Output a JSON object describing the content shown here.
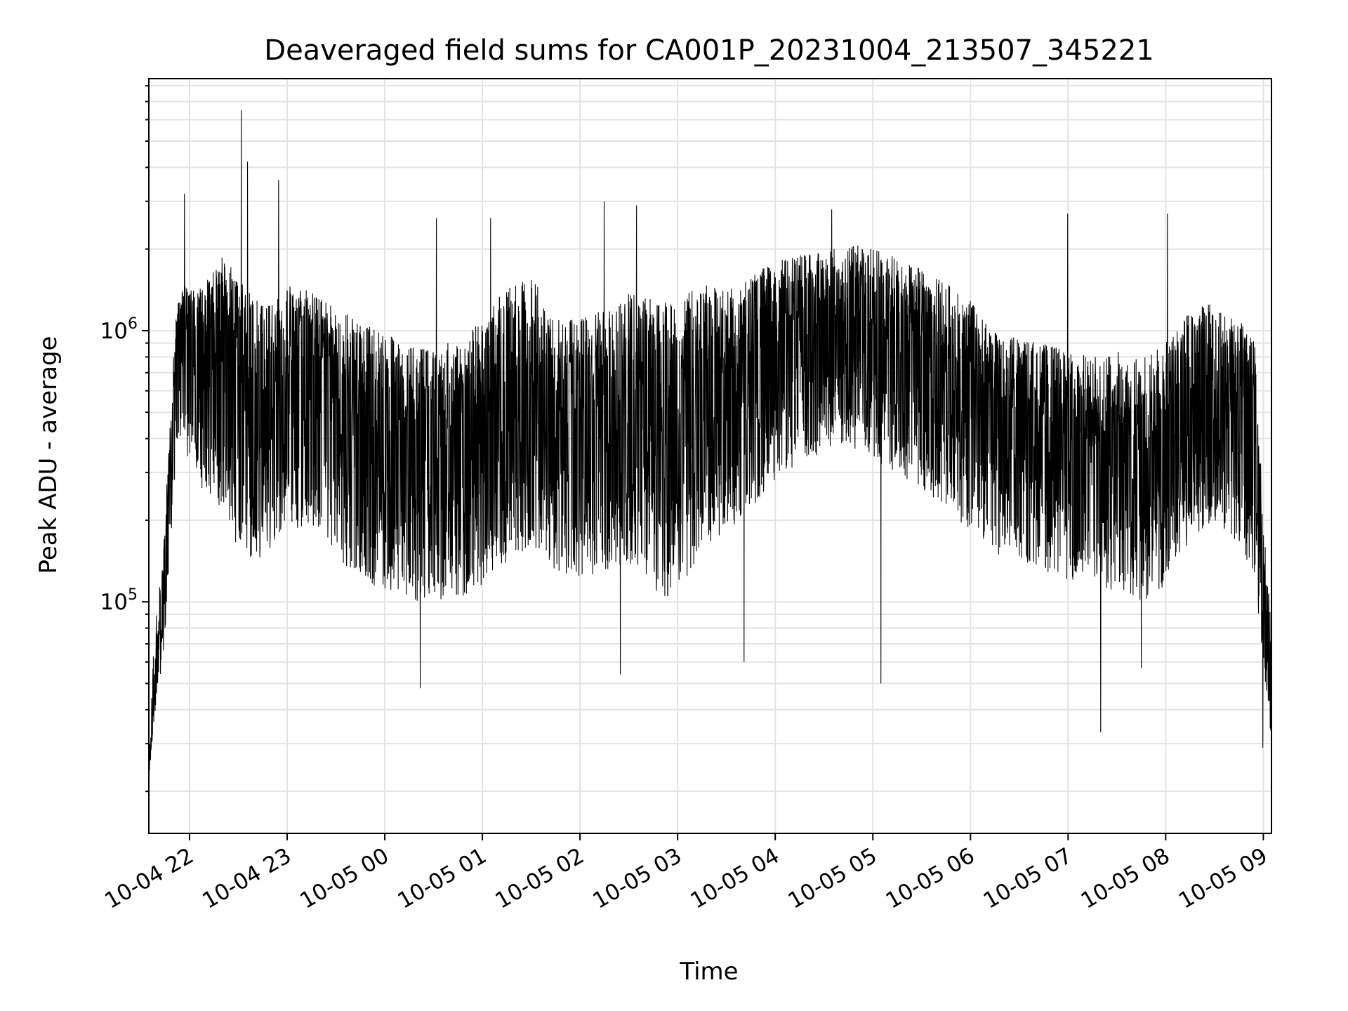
{
  "chart_data": {
    "type": "line",
    "title": "Deaveraged field sums for CA001P_20231004_213507_345221",
    "xlabel": "Time",
    "ylabel": "Peak ADU - average",
    "xscale": "time",
    "yscale": "log",
    "grid": true,
    "legend": "none",
    "line_color": "#000000",
    "grid_color": "#e3e3e3",
    "xlim": [
      "2023-10-04 21:35",
      "2023-10-05 09:05"
    ],
    "ylim": [
      14000,
      8500000
    ],
    "xticks": [
      "10-04 22",
      "10-04 23",
      "10-05 00",
      "10-05 01",
      "10-05 02",
      "10-05 03",
      "10-05 04",
      "10-05 05",
      "10-05 06",
      "10-05 07",
      "10-05 08",
      "10-05 09"
    ],
    "yticks": [
      {
        "base": "10",
        "exp": "5",
        "value": 100000
      },
      {
        "base": "10",
        "exp": "6",
        "value": 1000000
      }
    ],
    "series": [
      {
        "x": [
          "2023-10-04 21:35",
          "2023-10-04 21:38",
          "2023-10-04 21:41",
          "2023-10-04 21:44",
          "2023-10-04 21:48",
          "2023-10-04 21:52",
          "2023-10-04 21:56",
          "2023-10-04 22:00",
          "2023-10-04 22:10",
          "2023-10-04 22:20",
          "2023-10-04 22:30",
          "2023-10-04 22:40",
          "2023-10-04 22:50",
          "2023-10-04 23:00",
          "2023-10-04 23:15",
          "2023-10-04 23:30",
          "2023-10-04 23:45",
          "2023-10-05 00:00",
          "2023-10-05 00:15",
          "2023-10-05 00:30",
          "2023-10-05 00:45",
          "2023-10-05 01:00",
          "2023-10-05 01:15",
          "2023-10-05 01:30",
          "2023-10-05 01:45",
          "2023-10-05 02:00",
          "2023-10-05 02:15",
          "2023-10-05 02:30",
          "2023-10-05 02:45",
          "2023-10-05 03:00",
          "2023-10-05 03:15",
          "2023-10-05 03:30",
          "2023-10-05 03:45",
          "2023-10-05 04:00",
          "2023-10-05 04:15",
          "2023-10-05 04:30",
          "2023-10-05 04:45",
          "2023-10-05 05:00",
          "2023-10-05 05:15",
          "2023-10-05 05:30",
          "2023-10-05 05:45",
          "2023-10-05 06:00",
          "2023-10-05 06:15",
          "2023-10-05 06:30",
          "2023-10-05 06:45",
          "2023-10-05 07:00",
          "2023-10-05 07:15",
          "2023-10-05 07:30",
          "2023-10-05 07:45",
          "2023-10-05 08:00",
          "2023-10-05 08:15",
          "2023-10-05 08:30",
          "2023-10-05 08:45",
          "2023-10-05 08:55",
          "2023-10-05 09:00",
          "2023-10-05 09:05"
        ],
        "y": [
          22000,
          45000,
          80000,
          120000,
          300000,
          800000,
          1000000,
          900000,
          900000,
          1100000,
          700000,
          500000,
          550000,
          650000,
          700000,
          550000,
          450000,
          400000,
          350000,
          300000,
          350000,
          350000,
          500000,
          600000,
          450000,
          450000,
          500000,
          550000,
          500000,
          450000,
          650000,
          600000,
          750000,
          850000,
          900000,
          950000,
          1000000,
          950000,
          900000,
          800000,
          700000,
          650000,
          500000,
          450000,
          400000,
          350000,
          350000,
          350000,
          320000,
          350000,
          500000,
          550000,
          500000,
          400000,
          100000,
          50000
        ],
        "envelope": {
          "low": [
            22000,
            35000,
            50000,
            60000,
            150000,
            350000,
            450000,
            300000,
            250000,
            220000,
            150000,
            140000,
            150000,
            180000,
            170000,
            140000,
            120000,
            110000,
            100000,
            100000,
            100000,
            110000,
            140000,
            160000,
            130000,
            120000,
            130000,
            130000,
            110000,
            100000,
            160000,
            180000,
            220000,
            280000,
            320000,
            350000,
            380000,
            330000,
            300000,
            260000,
            210000,
            180000,
            150000,
            140000,
            130000,
            120000,
            110000,
            110000,
            100000,
            110000,
            170000,
            200000,
            160000,
            120000,
            60000,
            30000
          ],
          "high": [
            25000,
            70000,
            110000,
            150000,
            500000,
            1200000,
            1500000,
            1400000,
            1500000,
            1900000,
            1600000,
            1300000,
            1300000,
            1500000,
            1400000,
            1200000,
            1100000,
            1000000,
            900000,
            850000,
            950000,
            1100000,
            1500000,
            1600000,
            1100000,
            1100000,
            1200000,
            1400000,
            1300000,
            1300000,
            1500000,
            1400000,
            1600000,
            1800000,
            1900000,
            2000000,
            2100000,
            2000000,
            1900000,
            1700000,
            1500000,
            1300000,
            1000000,
            950000,
            900000,
            850000,
            800000,
            850000,
            800000,
            900000,
            1200000,
            1300000,
            1100000,
            900000,
            200000,
            90000
          ]
        },
        "spikes": [
          {
            "x": "2023-10-04 22:32",
            "y": 6500000
          },
          {
            "x": "2023-10-04 22:36",
            "y": 4200000
          },
          {
            "x": "2023-10-04 22:55",
            "y": 3600000
          },
          {
            "x": "2023-10-04 21:57",
            "y": 3200000
          },
          {
            "x": "2023-10-05 02:15",
            "y": 3000000
          },
          {
            "x": "2023-10-05 02:35",
            "y": 2900000
          },
          {
            "x": "2023-10-05 04:35",
            "y": 2800000
          },
          {
            "x": "2023-10-05 07:00",
            "y": 2700000
          },
          {
            "x": "2023-10-05 08:01",
            "y": 2700000
          },
          {
            "x": "2023-10-05 00:32",
            "y": 2600000
          },
          {
            "x": "2023-10-05 01:05",
            "y": 2600000
          },
          {
            "x": "2023-10-05 00:22",
            "y": 48000
          },
          {
            "x": "2023-10-05 05:05",
            "y": 50000
          },
          {
            "x": "2023-10-05 07:20",
            "y": 33000
          },
          {
            "x": "2023-10-05 07:45",
            "y": 57000
          },
          {
            "x": "2023-10-05 02:25",
            "y": 54000
          },
          {
            "x": "2023-10-05 03:41",
            "y": 60000
          },
          {
            "x": "2023-10-05 09:00",
            "y": 29000
          }
        ]
      }
    ]
  }
}
